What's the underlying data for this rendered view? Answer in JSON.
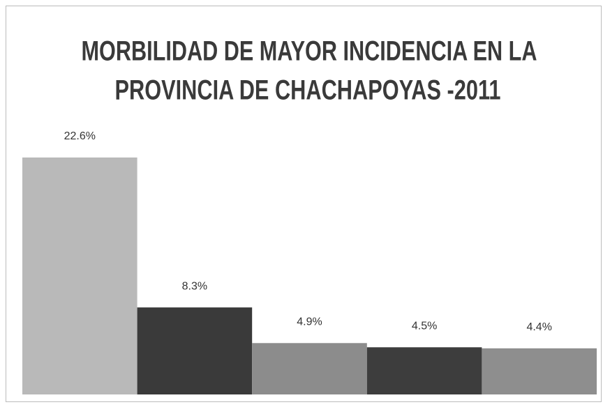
{
  "chart_data": {
    "type": "bar",
    "title": [
      "MORBILIDAD DE MAYOR INCIDENCIA EN LA",
      "PROVINCIA DE CHACHAPOYAS -2011"
    ],
    "categories": [
      null,
      null,
      null,
      null,
      null
    ],
    "values": [
      22.6,
      8.3,
      4.9,
      4.5,
      4.4
    ],
    "value_labels": [
      "22.6%",
      "8.3%",
      "4.9%",
      "4.5%",
      "4.4%"
    ],
    "colors": [
      "#b9b9b9",
      "#3a3a3a",
      "#8c8c8c",
      "#3d3d3d",
      "#8e8e8e"
    ]
  }
}
